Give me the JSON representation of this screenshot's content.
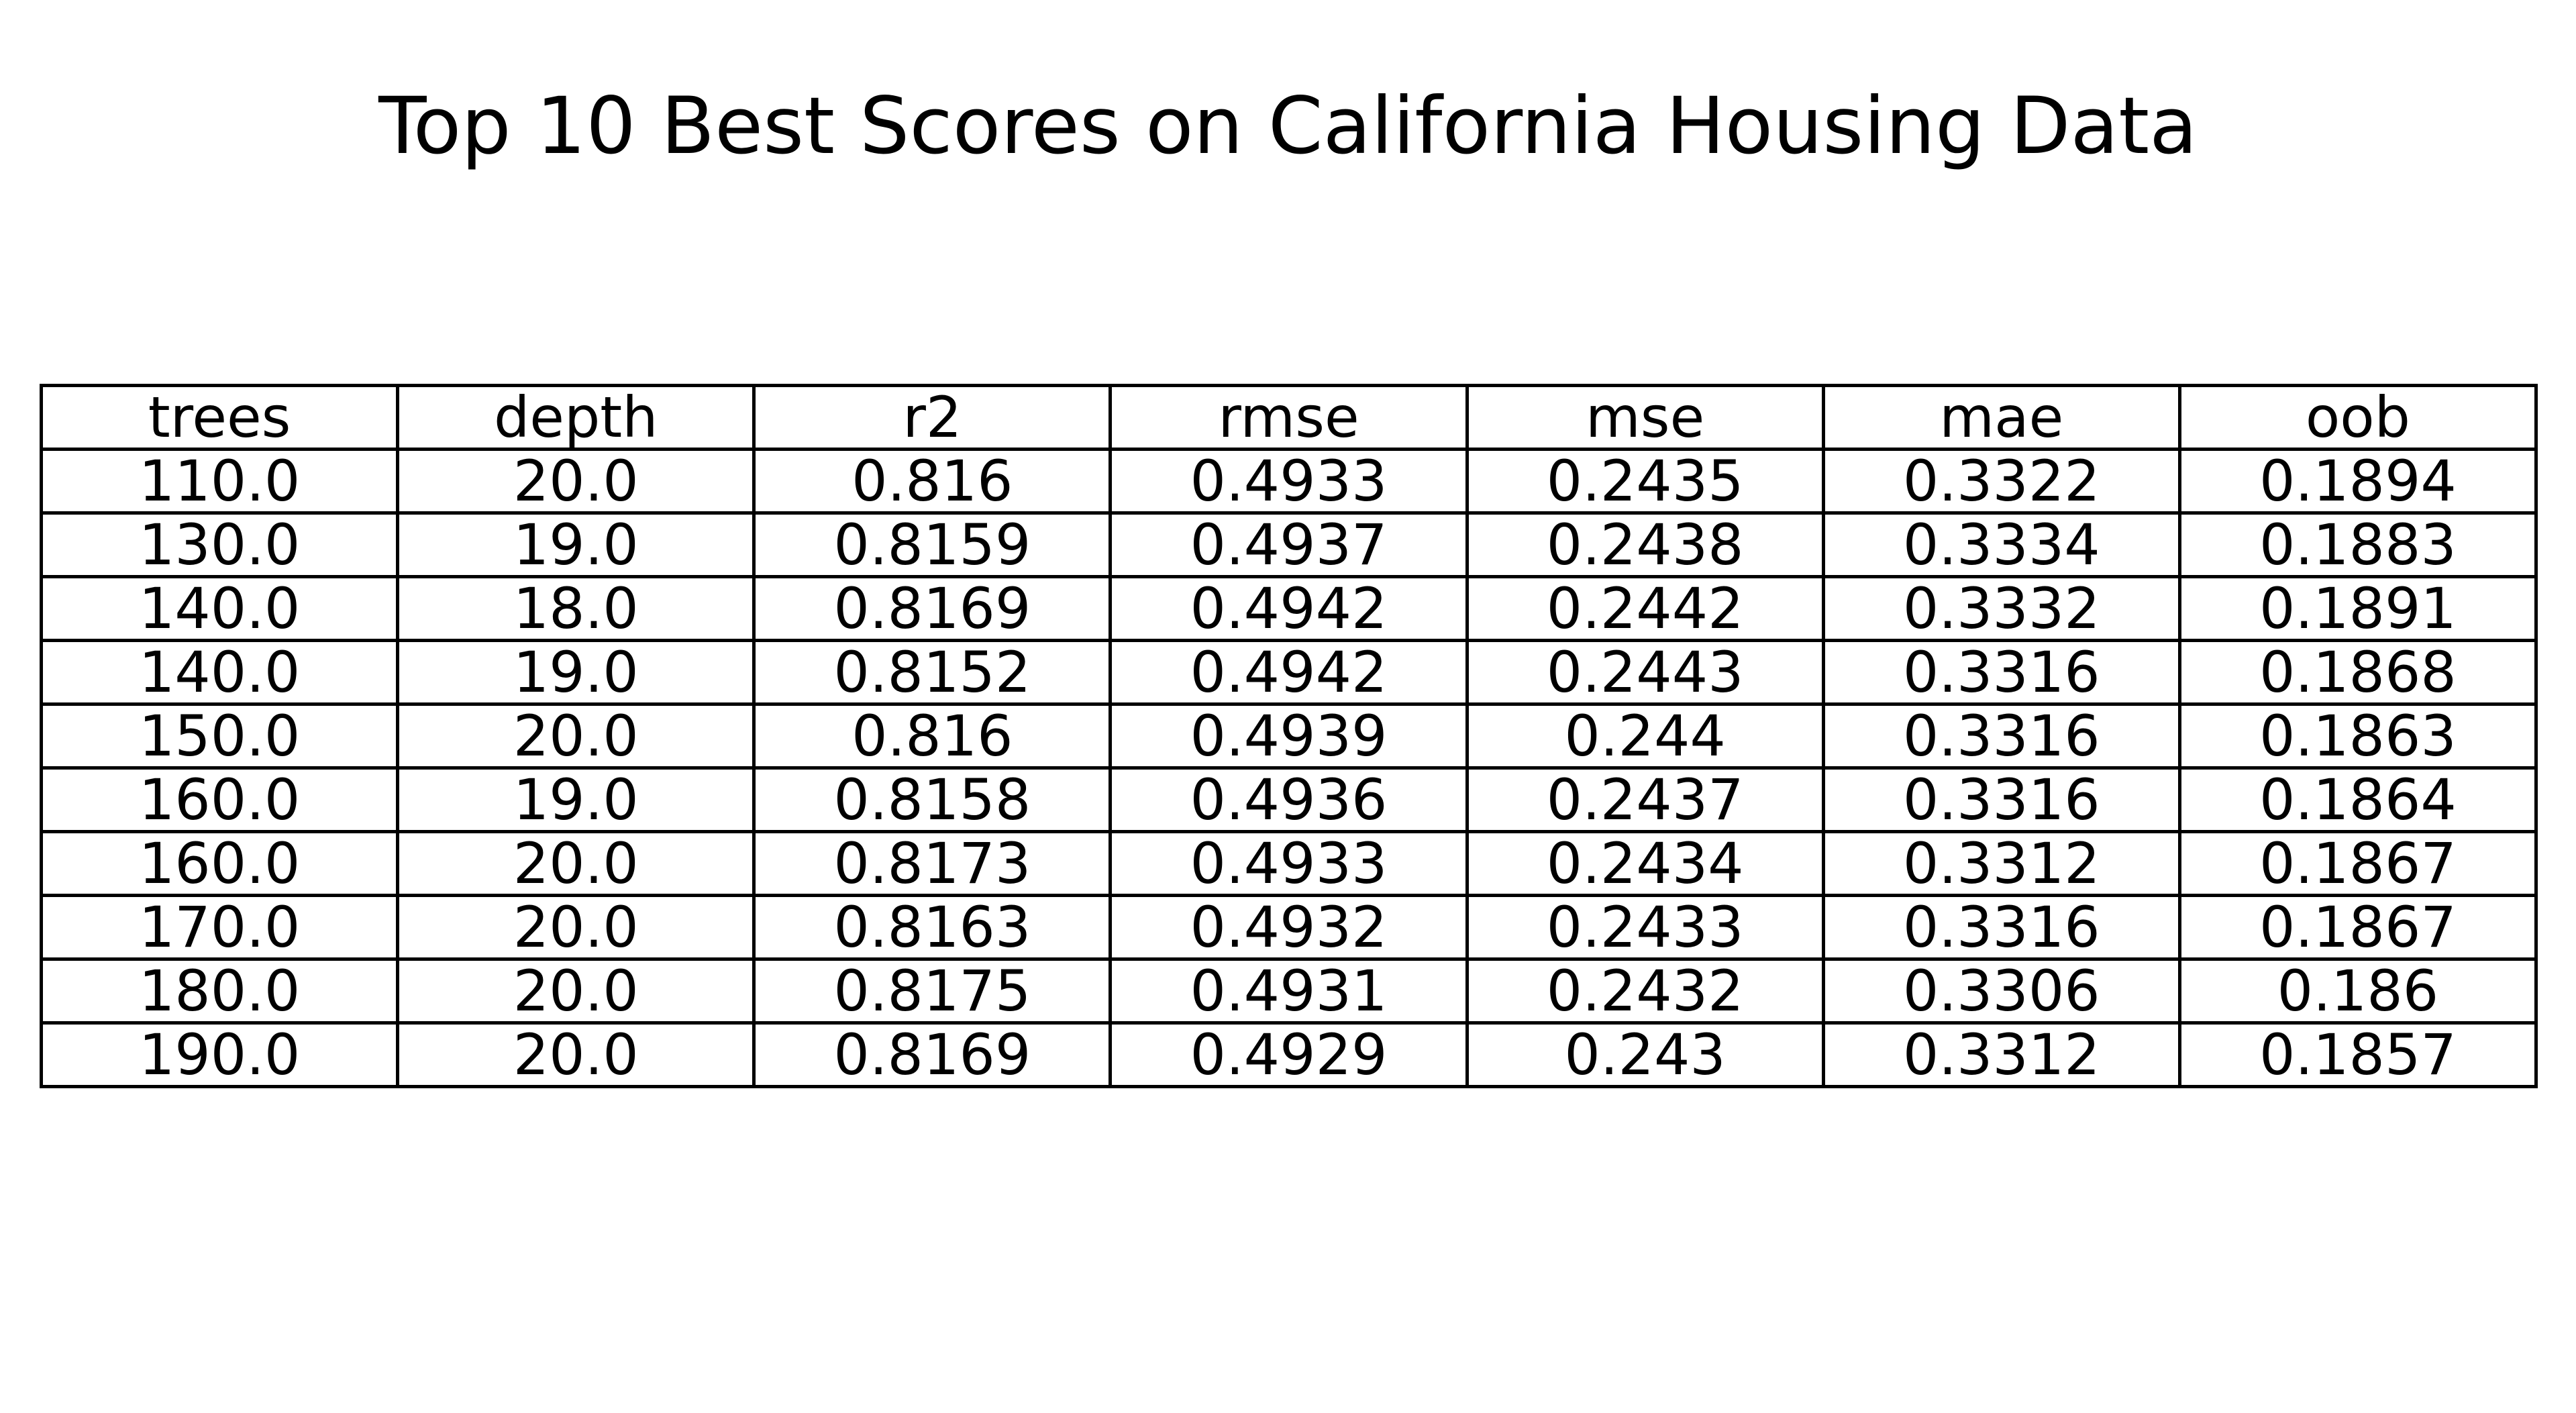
{
  "chart_data": {
    "type": "table",
    "title": "Top 10 Best Scores on California Housing Data",
    "columns": [
      "trees",
      "depth",
      "r2",
      "rmse",
      "mse",
      "mae",
      "oob"
    ],
    "rows": [
      [
        "110.0",
        "20.0",
        "0.816",
        "0.4933",
        "0.2435",
        "0.3322",
        "0.1894"
      ],
      [
        "130.0",
        "19.0",
        "0.8159",
        "0.4937",
        "0.2438",
        "0.3334",
        "0.1883"
      ],
      [
        "140.0",
        "18.0",
        "0.8169",
        "0.4942",
        "0.2442",
        "0.3332",
        "0.1891"
      ],
      [
        "140.0",
        "19.0",
        "0.8152",
        "0.4942",
        "0.2443",
        "0.3316",
        "0.1868"
      ],
      [
        "150.0",
        "20.0",
        "0.816",
        "0.4939",
        "0.244",
        "0.3316",
        "0.1863"
      ],
      [
        "160.0",
        "19.0",
        "0.8158",
        "0.4936",
        "0.2437",
        "0.3316",
        "0.1864"
      ],
      [
        "160.0",
        "20.0",
        "0.8173",
        "0.4933",
        "0.2434",
        "0.3312",
        "0.1867"
      ],
      [
        "170.0",
        "20.0",
        "0.8163",
        "0.4932",
        "0.2433",
        "0.3316",
        "0.1867"
      ],
      [
        "180.0",
        "20.0",
        "0.8175",
        "0.4931",
        "0.2432",
        "0.3306",
        "0.186"
      ],
      [
        "190.0",
        "20.0",
        "0.8169",
        "0.4929",
        "0.243",
        "0.3312",
        "0.1857"
      ]
    ]
  }
}
